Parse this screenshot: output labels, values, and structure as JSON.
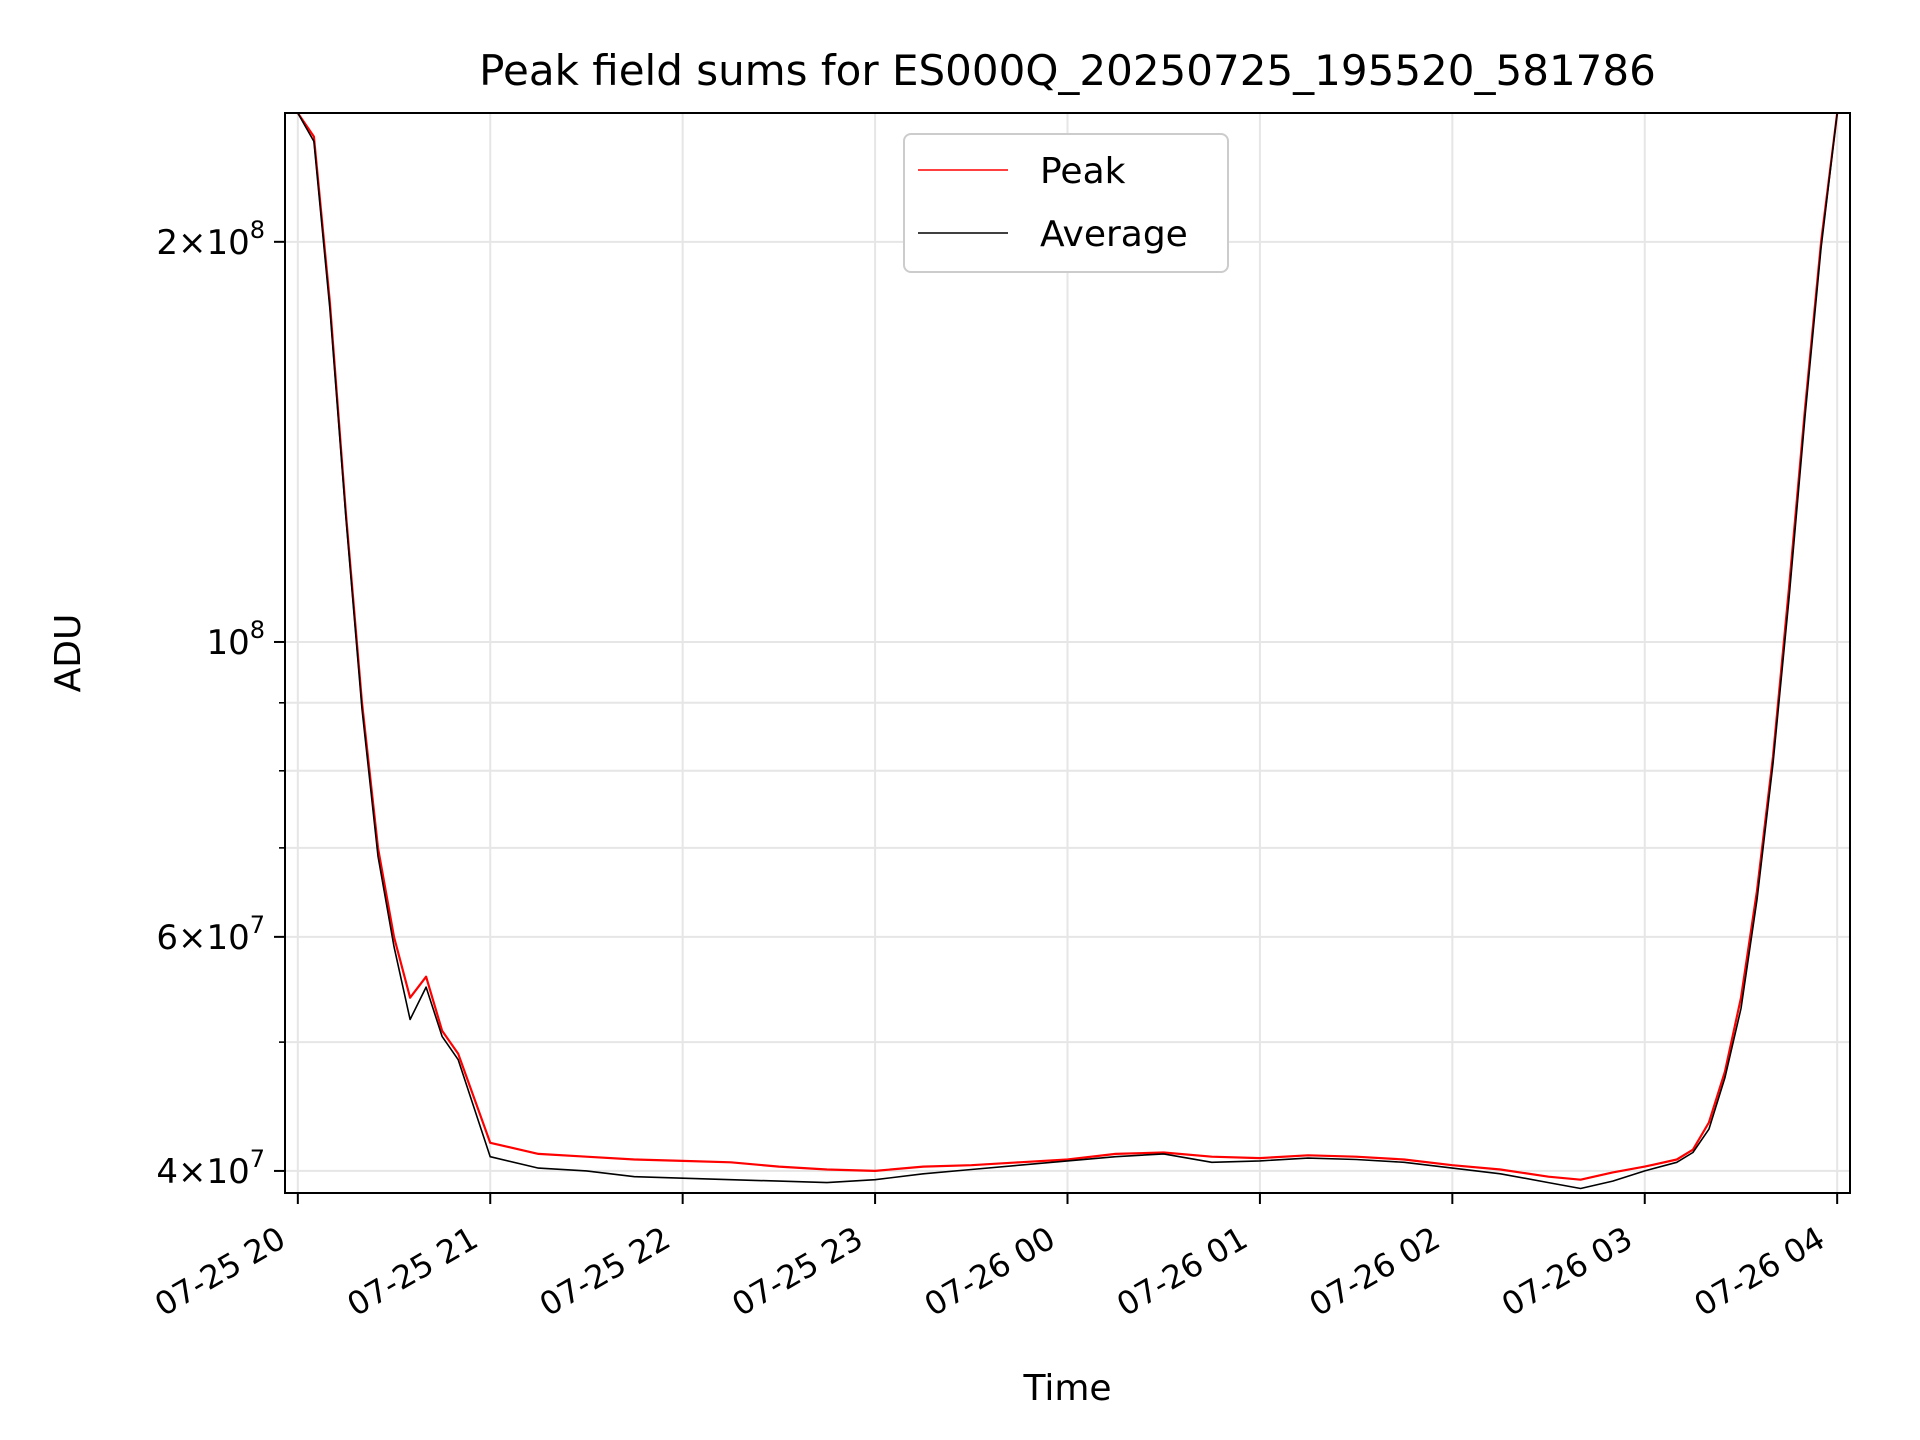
{
  "chart_data": {
    "type": "line",
    "title": "Peak field sums for ES000Q_20250725_195520_581786",
    "xlabel": "Time",
    "ylabel": "ADU",
    "y_scale": "log",
    "ylim": [
      38500000,
      250000000
    ],
    "xlim": [
      "2025-07-25 19:56",
      "2025-07-26 04:04"
    ],
    "grid": true,
    "legend_position": "upper center",
    "x_ticks": [
      {
        "value": "2025-07-25 20:00",
        "label": "07-25 20"
      },
      {
        "value": "2025-07-25 21:00",
        "label": "07-25 21"
      },
      {
        "value": "2025-07-25 22:00",
        "label": "07-25 22"
      },
      {
        "value": "2025-07-25 23:00",
        "label": "07-25 23"
      },
      {
        "value": "2025-07-26 00:00",
        "label": "07-26 00"
      },
      {
        "value": "2025-07-26 01:00",
        "label": "07-26 01"
      },
      {
        "value": "2025-07-26 02:00",
        "label": "07-26 02"
      },
      {
        "value": "2025-07-26 03:00",
        "label": "07-26 03"
      },
      {
        "value": "2025-07-26 04:00",
        "label": "07-26 04"
      }
    ],
    "y_ticks": [
      {
        "value": 40000000,
        "mantissa": "4",
        "exponent": "7"
      },
      {
        "value": 60000000,
        "mantissa": "6",
        "exponent": "7"
      },
      {
        "value": 100000000,
        "mantissa": "",
        "exponent": "8"
      },
      {
        "value": 200000000,
        "mantissa": "2",
        "exponent": "8"
      }
    ],
    "y_minor_ticks": [
      50000000,
      70000000,
      80000000,
      90000000
    ],
    "times_symbol": "×",
    "tick_base": "10",
    "series": [
      {
        "name": "Peak",
        "color": "#ff0000",
        "x": [
          "2025-07-25 20:00",
          "2025-07-25 20:05",
          "2025-07-25 20:10",
          "2025-07-25 20:15",
          "2025-07-25 20:20",
          "2025-07-25 20:25",
          "2025-07-25 20:30",
          "2025-07-25 20:35",
          "2025-07-25 20:40",
          "2025-07-25 20:45",
          "2025-07-25 20:50",
          "2025-07-25 21:00",
          "2025-07-25 21:15",
          "2025-07-25 21:30",
          "2025-07-25 21:45",
          "2025-07-25 22:00",
          "2025-07-25 22:15",
          "2025-07-25 22:30",
          "2025-07-25 22:45",
          "2025-07-25 23:00",
          "2025-07-25 23:15",
          "2025-07-25 23:30",
          "2025-07-25 23:45",
          "2025-07-26 00:00",
          "2025-07-26 00:15",
          "2025-07-26 00:30",
          "2025-07-26 00:45",
          "2025-07-26 01:00",
          "2025-07-26 01:15",
          "2025-07-26 01:30",
          "2025-07-26 01:45",
          "2025-07-26 02:00",
          "2025-07-26 02:15",
          "2025-07-26 02:30",
          "2025-07-26 02:40",
          "2025-07-26 02:50",
          "2025-07-26 03:00",
          "2025-07-26 03:10",
          "2025-07-26 03:15",
          "2025-07-26 03:20",
          "2025-07-26 03:25",
          "2025-07-26 03:30",
          "2025-07-26 03:35",
          "2025-07-26 03:40",
          "2025-07-26 03:45",
          "2025-07-26 03:50",
          "2025-07-26 03:55",
          "2025-07-26 04:00"
        ],
        "y": [
          250000000,
          240000000,
          180000000,
          125000000,
          90000000,
          70000000,
          60000000,
          54000000,
          56000000,
          51000000,
          49000000,
          42000000,
          41200000,
          41000000,
          40800000,
          40700000,
          40600000,
          40300000,
          40100000,
          40000000,
          40300000,
          40400000,
          40600000,
          40800000,
          41200000,
          41300000,
          41000000,
          40900000,
          41100000,
          41000000,
          40800000,
          40400000,
          40100000,
          39600000,
          39400000,
          39900000,
          40300000,
          40800000,
          41500000,
          43500000,
          47500000,
          54000000,
          65000000,
          82000000,
          110000000,
          150000000,
          200000000,
          250000000
        ]
      },
      {
        "name": "Average",
        "color": "#000000",
        "x": [
          "2025-07-25 20:00",
          "2025-07-25 20:05",
          "2025-07-25 20:10",
          "2025-07-25 20:15",
          "2025-07-25 20:20",
          "2025-07-25 20:25",
          "2025-07-25 20:30",
          "2025-07-25 20:35",
          "2025-07-25 20:40",
          "2025-07-25 20:45",
          "2025-07-25 20:50",
          "2025-07-25 21:00",
          "2025-07-25 21:15",
          "2025-07-25 21:30",
          "2025-07-25 21:45",
          "2025-07-25 22:00",
          "2025-07-25 22:15",
          "2025-07-25 22:30",
          "2025-07-25 22:45",
          "2025-07-25 23:00",
          "2025-07-25 23:15",
          "2025-07-25 23:30",
          "2025-07-25 23:45",
          "2025-07-26 00:00",
          "2025-07-26 00:15",
          "2025-07-26 00:30",
          "2025-07-26 00:45",
          "2025-07-26 01:00",
          "2025-07-26 01:15",
          "2025-07-26 01:30",
          "2025-07-26 01:45",
          "2025-07-26 02:00",
          "2025-07-26 02:15",
          "2025-07-26 02:30",
          "2025-07-26 02:40",
          "2025-07-26 02:50",
          "2025-07-26 03:00",
          "2025-07-26 03:10",
          "2025-07-26 03:15",
          "2025-07-26 03:20",
          "2025-07-26 03:25",
          "2025-07-26 03:30",
          "2025-07-26 03:35",
          "2025-07-26 03:40",
          "2025-07-26 03:45",
          "2025-07-26 03:50",
          "2025-07-26 03:55",
          "2025-07-26 04:00"
        ],
        "y": [
          250000000,
          238000000,
          178000000,
          124000000,
          89000000,
          69000000,
          59000000,
          52000000,
          55000000,
          50500000,
          48500000,
          41000000,
          40200000,
          40000000,
          39600000,
          39500000,
          39400000,
          39300000,
          39200000,
          39400000,
          39800000,
          40100000,
          40400000,
          40700000,
          41000000,
          41200000,
          40600000,
          40700000,
          40900000,
          40800000,
          40600000,
          40200000,
          39800000,
          39200000,
          38800000,
          39300000,
          40000000,
          40600000,
          41300000,
          43000000,
          47000000,
          53000000,
          64000000,
          81000000,
          108000000,
          148000000,
          198000000,
          250000000
        ]
      }
    ]
  }
}
